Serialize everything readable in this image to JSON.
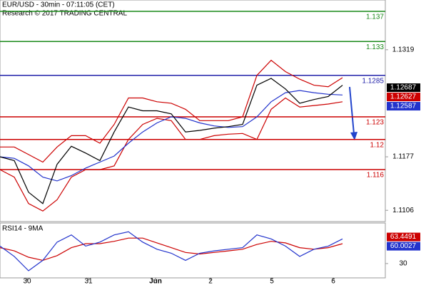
{
  "header": {
    "title": "EUR/USD - 30min - 07:11:05 (CET)",
    "subtitle": "Research © 2017 TRADING CENTRAL"
  },
  "chart_data": [
    {
      "type": "line",
      "x": [
        0,
        1,
        2,
        3,
        4,
        5,
        6,
        7,
        8,
        9,
        10,
        11,
        12,
        13,
        14,
        15,
        16,
        17,
        18,
        19,
        20,
        21,
        22,
        23,
        24
      ],
      "xlim": [
        0,
        27
      ],
      "ylim": [
        1.1092,
        1.1385
      ],
      "yticks": [
        1.1319,
        1.1177,
        1.1106
      ],
      "series": [
        {
          "color": "#cc0000",
          "values": [
            1.119,
            1.119,
            1.118,
            1.117,
            1.119,
            1.1205,
            1.1205,
            1.1195,
            1.122,
            1.1255,
            1.1255,
            1.125,
            1.1248,
            1.124,
            1.1225,
            1.1225,
            1.1225,
            1.123,
            1.1285,
            1.1305,
            1.129,
            1.128,
            1.1272,
            1.127,
            1.1282
          ]
        },
        {
          "color": "#cc0000",
          "values": [
            1.116,
            1.115,
            1.1115,
            1.1105,
            1.112,
            1.115,
            1.116,
            1.116,
            1.1165,
            1.12,
            1.122,
            1.1228,
            1.1225,
            1.12,
            1.12,
            1.1205,
            1.1207,
            1.1208,
            1.12,
            1.124,
            1.1255,
            1.1243,
            1.1245,
            1.1247,
            1.125
          ]
        },
        {
          "color": "#2233cc",
          "values": [
            1.1177,
            1.1175,
            1.1165,
            1.115,
            1.1145,
            1.1152,
            1.1162,
            1.117,
            1.1178,
            1.1195,
            1.121,
            1.1222,
            1.123,
            1.1228,
            1.1222,
            1.1218,
            1.1216,
            1.1217,
            1.123,
            1.125,
            1.1262,
            1.1265,
            1.1262,
            1.126,
            1.1259
          ]
        },
        {
          "color": "#000000",
          "values": [
            1.1177,
            1.1172,
            1.113,
            1.1115,
            1.1167,
            1.1191,
            1.1182,
            1.1172,
            1.121,
            1.1243,
            1.1238,
            1.1238,
            1.1234,
            1.121,
            1.1212,
            1.1215,
            1.1217,
            1.122,
            1.1272,
            1.1281,
            1.1267,
            1.1248,
            1.1253,
            1.1257,
            1.1272
          ]
        }
      ],
      "levels": [
        {
          "value": 1.137,
          "color": "#1a8a1a"
        },
        {
          "value": 1.133,
          "color": "#1a8a1a"
        },
        {
          "value": 1.1285,
          "color": "#2222aa"
        },
        {
          "value": 1.123,
          "color": "#cc0000"
        },
        {
          "value": 1.12,
          "color": "#cc0000"
        },
        {
          "value": 1.116,
          "color": "#cc0000"
        }
      ],
      "price_labels": [
        {
          "value": 1.12687,
          "color": "#000000"
        },
        {
          "value": 1.12627,
          "color": "#cc0000"
        },
        {
          "value": 1.12587,
          "color": "#2233cc"
        }
      ]
    },
    {
      "type": "line",
      "title": "RSI14 - 9MA",
      "x": [
        0,
        1,
        2,
        3,
        4,
        5,
        6,
        7,
        8,
        9,
        10,
        11,
        12,
        13,
        14,
        15,
        16,
        17,
        18,
        19,
        20,
        21,
        22,
        23,
        24
      ],
      "xlim": [
        0,
        27
      ],
      "ylim": [
        12,
        81
      ],
      "yticks": [
        30
      ],
      "xticks": [
        {
          "value": 1.9,
          "label": "30"
        },
        {
          "value": 6.2,
          "label": "31"
        },
        {
          "value": 10.9,
          "label": "Jun"
        },
        {
          "value": 14.75,
          "label": "2"
        },
        {
          "value": 19.05,
          "label": "5"
        },
        {
          "value": 23.35,
          "label": "6"
        }
      ],
      "series": [
        {
          "color": "#cc0000",
          "values": [
            50,
            46,
            38,
            34,
            40,
            50,
            55,
            55,
            58,
            62,
            62,
            56,
            50,
            44,
            42,
            44,
            46,
            48,
            54,
            58,
            56,
            50,
            48,
            50,
            55
          ]
        },
        {
          "color": "#2233cc",
          "values": [
            52,
            39,
            21,
            34,
            57,
            66,
            52,
            57,
            66,
            70,
            57,
            48,
            43,
            34,
            43,
            46,
            48,
            50,
            66,
            61,
            52,
            39,
            48,
            52,
            61
          ]
        }
      ],
      "price_labels": [
        {
          "value": 63.4491,
          "color": "#cc0000"
        },
        {
          "value": 60.0027,
          "color": "#2233cc"
        }
      ]
    }
  ]
}
